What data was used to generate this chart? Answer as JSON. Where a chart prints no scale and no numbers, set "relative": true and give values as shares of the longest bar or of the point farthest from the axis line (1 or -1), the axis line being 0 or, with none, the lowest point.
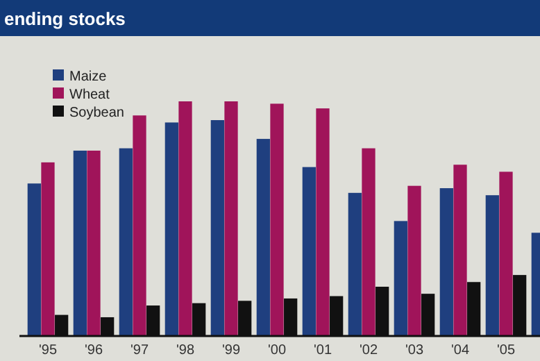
{
  "chart_data": {
    "type": "bar",
    "title": "ending stocks",
    "relative": true,
    "legend": "top left",
    "categories": [
      "'95",
      "'96",
      "'97",
      "'98",
      "'99",
      "'00",
      "'01",
      "'02",
      "'03",
      "'04",
      "'05",
      null
    ],
    "series": [
      {
        "name": "Maize",
        "color": "#1f3f7f",
        "values": [
          0.65,
          0.79,
          0.8,
          0.91,
          0.92,
          0.84,
          0.72,
          0.61,
          0.49,
          0.63,
          0.6,
          0.44
        ]
      },
      {
        "name": "Wheat",
        "color": "#a0145a",
        "values": [
          0.74,
          0.79,
          0.94,
          1.0,
          1.0,
          0.99,
          0.97,
          0.8,
          0.64,
          0.73,
          0.7,
          null
        ]
      },
      {
        "name": "Soybean",
        "color": "#111111",
        "values": [
          0.09,
          0.08,
          0.13,
          0.14,
          0.15,
          0.16,
          0.17,
          0.21,
          0.18,
          0.23,
          0.26,
          null
        ]
      }
    ]
  }
}
